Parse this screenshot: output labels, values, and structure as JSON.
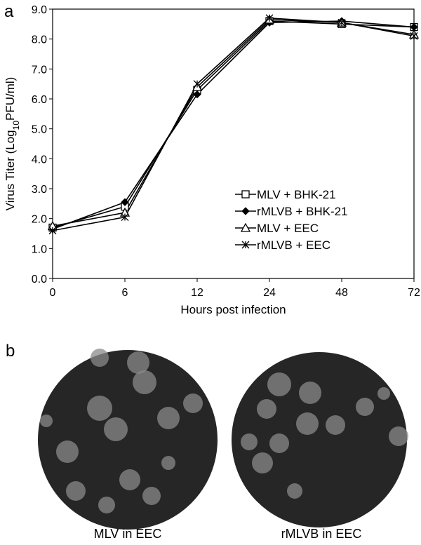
{
  "panel_a": {
    "label": "a"
  },
  "chart_data": {
    "type": "line",
    "x_label": "Hours post infection",
    "y_label_parts": [
      "Virus Titer (Log",
      "10",
      "PFU/ml)"
    ],
    "categories": [
      "0",
      "6",
      "12",
      "24",
      "48",
      "72"
    ],
    "series": [
      {
        "name": "MLV + BHK-21",
        "color": "#000000",
        "marker": "square",
        "values": [
          1.7,
          2.4,
          6.3,
          8.6,
          8.5,
          8.4
        ]
      },
      {
        "name": "rMLVB + BHK-21",
        "color": "#000000",
        "marker": "diamond",
        "values": [
          1.65,
          2.55,
          6.15,
          8.55,
          8.6,
          8.4
        ]
      },
      {
        "name": "MLV + EEC",
        "color": "#000000",
        "marker": "triangle",
        "values": [
          1.75,
          2.2,
          6.4,
          8.65,
          8.55,
          8.15
        ]
      },
      {
        "name": "rMLVB + EEC",
        "color": "#000000",
        "marker": "asterisk",
        "values": [
          1.6,
          2.05,
          6.5,
          8.7,
          8.55,
          8.1
        ]
      }
    ],
    "ylim": [
      0,
      9
    ],
    "yticks": [
      {
        "value": 0,
        "label": "0.0"
      },
      {
        "value": 1,
        "label": "1.0"
      },
      {
        "value": 2,
        "label": "2.0"
      },
      {
        "value": 3,
        "label": "3.0"
      },
      {
        "value": 4,
        "label": "4.0"
      },
      {
        "value": 5,
        "label": "5.0"
      },
      {
        "value": 6,
        "label": "6.0"
      },
      {
        "value": 7,
        "label": "7.0"
      },
      {
        "value": 8,
        "label": "8.0"
      },
      {
        "value": 9,
        "label": "9.0"
      }
    ],
    "grid": false,
    "legend": "lower-right"
  },
  "panel_b": {
    "label": "b",
    "captions": [
      "MLV in EEC",
      "rMLVB in EEC"
    ]
  }
}
